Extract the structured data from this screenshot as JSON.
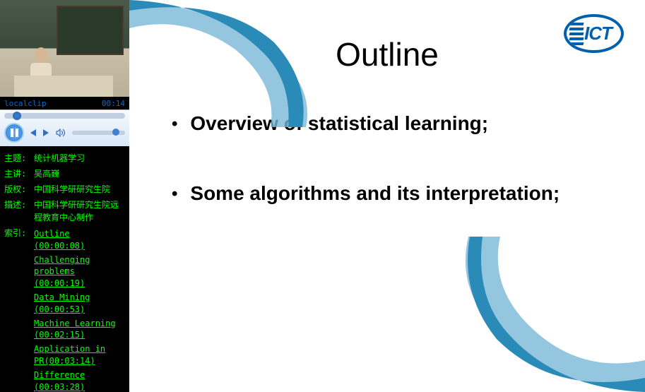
{
  "player": {
    "clip_name": "localclip",
    "timestamp": "00:14",
    "seek_position_pct": 8,
    "volume_pct": 85
  },
  "info": {
    "labels": {
      "topic": "主题:",
      "speaker": "主讲:",
      "copyright": "版权:",
      "description": "描述:",
      "index": "索引:"
    },
    "topic": "统计机器学习",
    "speaker": "吴高巍",
    "copyright": "中国科学研研究生院",
    "description": "中国科学研研究生院远程教育中心制作"
  },
  "index_items": [
    {
      "title": "Outline",
      "time": "(00:00:08)"
    },
    {
      "title": "Challenging problems",
      "time": "(00:00:19)"
    },
    {
      "title": "Data Mining",
      "time": "(00:00:53)"
    },
    {
      "title": "Machine Learning",
      "time": "(00:02:15)"
    },
    {
      "title": "Application in PR",
      "time": "(00:03:14)"
    },
    {
      "title": "Difference",
      "time": "(00:03:28)"
    }
  ],
  "slide": {
    "title": "Outline",
    "bullets": [
      "Overview of statistical learning;",
      "Some algorithms and its interpretation;"
    ],
    "logo_text": "ICT",
    "swoosh_color_light": "#7ab8d8",
    "swoosh_color_dark": "#2a8ab8",
    "logo_color": "#0060b0",
    "title_color": "#000000",
    "background_color": "#ffffff"
  }
}
